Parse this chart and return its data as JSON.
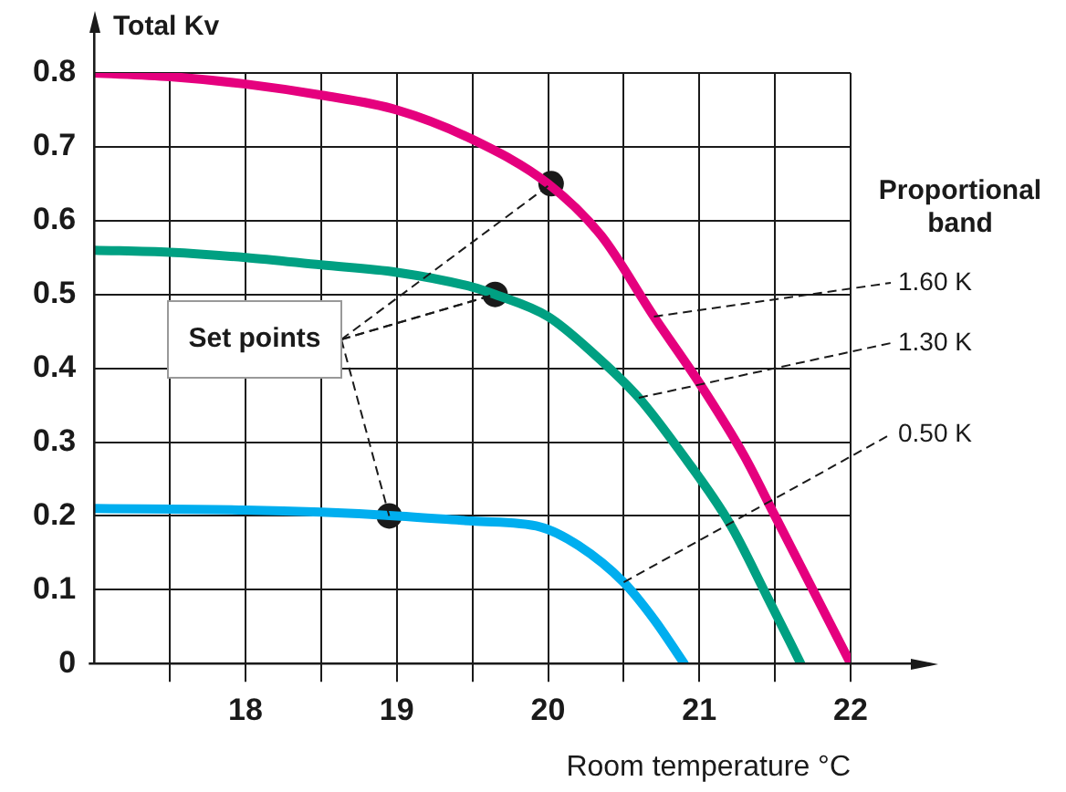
{
  "chart_data": {
    "type": "line",
    "xlabel": "Room temperature °C",
    "ylabel": "Total Kv",
    "annotations": [
      "Proportional band",
      {
        "text": "Set points",
        "x": 19.65,
        "y": 0.5
      }
    ],
    "xlim": [
      17,
      22
    ],
    "ylim": [
      0,
      0.8
    ],
    "xticks": [
      {
        "value": 17.5,
        "label": null
      },
      18,
      {
        "value": 18.5,
        "label": null
      },
      19,
      {
        "value": 19.5,
        "label": null
      },
      20,
      {
        "value": 20.5,
        "label": null
      },
      21,
      {
        "value": 21.5,
        "label": null
      },
      22
    ],
    "yticks": [
      0,
      0.1,
      0.2,
      0.3,
      0.4,
      0.5,
      0.6,
      0.7,
      0.8
    ],
    "grid": true,
    "legend": false,
    "marker": "none",
    "line_style": "solid",
    "series": [
      {
        "name": "1.60 K",
        "color": "#e5007e",
        "x": [
          17,
          17.5,
          18,
          18.5,
          19,
          19.5,
          20,
          20.35,
          20.7,
          21,
          21.3,
          21.5,
          21.75,
          22
        ],
        "values": [
          0.8,
          0.795,
          0.785,
          0.77,
          0.75,
          0.71,
          0.65,
          0.58,
          0.47,
          0.38,
          0.28,
          0.2,
          0.1,
          0
        ]
      },
      {
        "name": "1.30 K",
        "color": "#00a082",
        "x": [
          17,
          17.5,
          18,
          18.5,
          19,
          19.5,
          19.65,
          20,
          20.3,
          20.6,
          20.9,
          21.2,
          21.45,
          21.67
        ],
        "values": [
          0.56,
          0.557,
          0.55,
          0.54,
          0.53,
          0.51,
          0.5,
          0.47,
          0.42,
          0.36,
          0.28,
          0.19,
          0.09,
          0
        ]
      },
      {
        "name": "0.50 K",
        "color": "#00aeef",
        "x": [
          17,
          18,
          18.5,
          19,
          19.5,
          19.95,
          20.2,
          20.5,
          20.7,
          20.9
        ],
        "values": [
          0.21,
          0.208,
          0.205,
          0.2,
          0.193,
          0.185,
          0.16,
          0.11,
          0.06,
          0
        ]
      },
      {
        "type": "scatter",
        "color": "#1a1a1a",
        "marker": "circle",
        "x": [
          18.95,
          19.65,
          20.02
        ],
        "values": [
          0.2,
          0.5,
          0.65
        ]
      }
    ]
  }
}
